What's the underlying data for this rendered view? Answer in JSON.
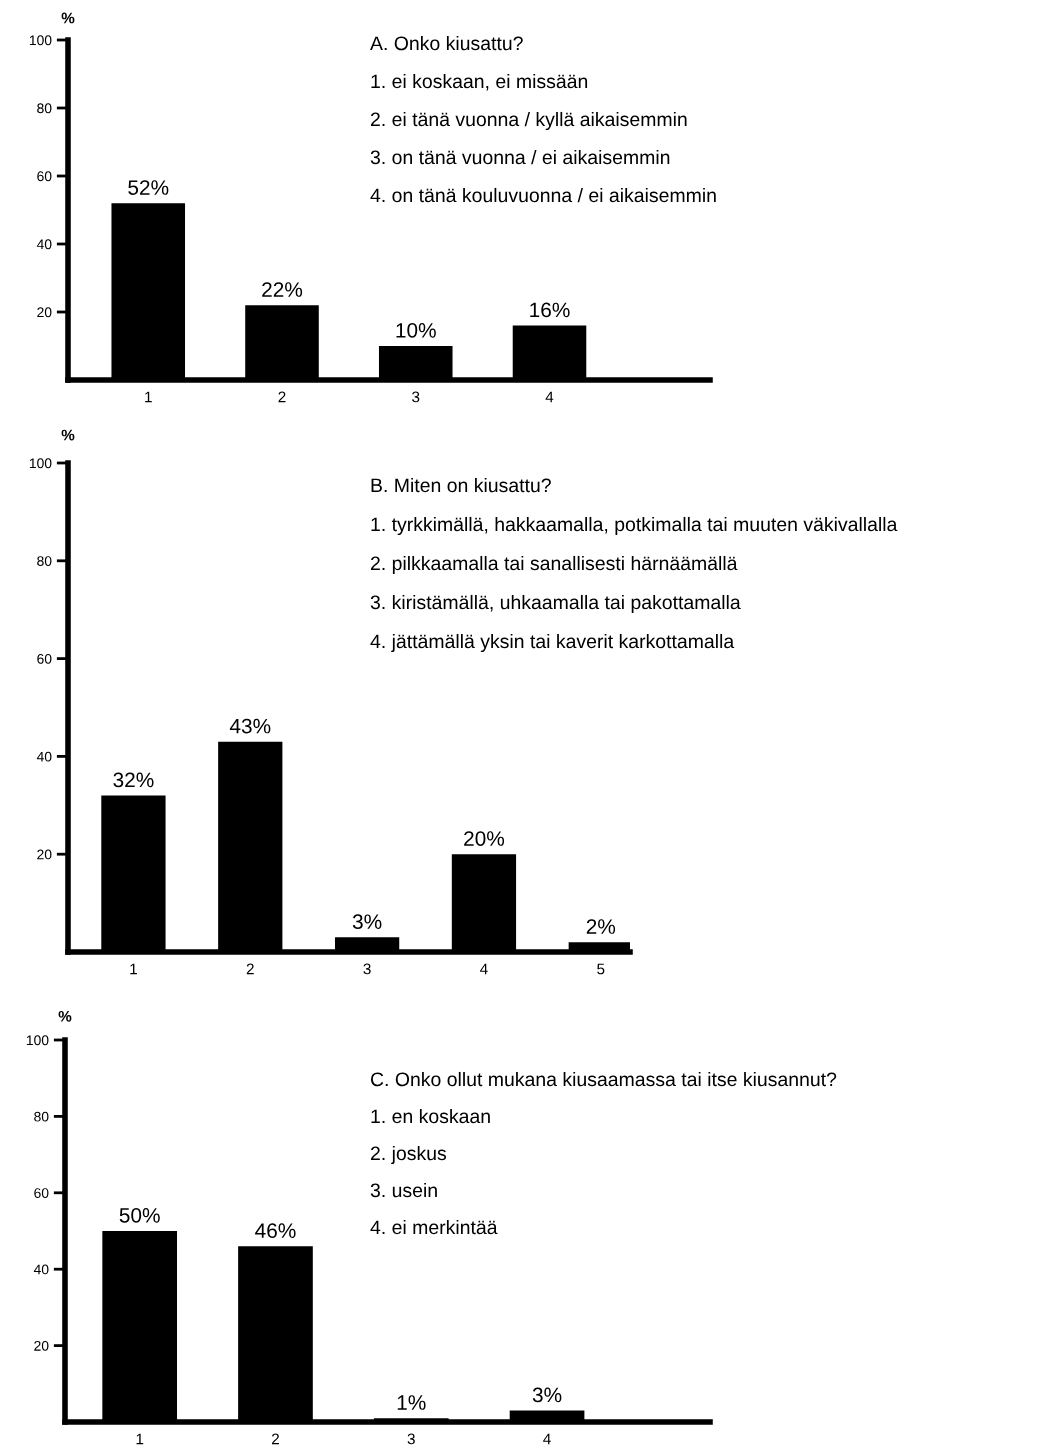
{
  "chart_data": [
    {
      "type": "bar",
      "title": "A. Onko kiusattu?",
      "ylabel": "%",
      "categories": [
        "1",
        "2",
        "3",
        "4"
      ],
      "values": [
        52,
        22,
        10,
        16
      ],
      "value_labels": [
        "52%",
        "22%",
        "10%",
        "16%"
      ],
      "color": "#000000",
      "ylim": [
        0,
        100
      ],
      "yticks": [
        20,
        40,
        60,
        80,
        100
      ],
      "grid": false,
      "legend": false,
      "annotations": [
        "1. ei koskaan, ei missään",
        "2. ei tänä vuonna / kyllä aikaisemmin",
        "3. on tänä vuonna / ei aikaisemmin",
        "4. on tänä kouluvuonna / ei aikaisemmin"
      ]
    },
    {
      "type": "bar",
      "title": "B. Miten on kiusattu?",
      "ylabel": "%",
      "categories": [
        "1",
        "2",
        "3",
        "4",
        "5"
      ],
      "values": [
        32,
        43,
        3,
        20,
        2
      ],
      "value_labels": [
        "32%",
        "43%",
        "3%",
        "20%",
        "2%"
      ],
      "color": "#000000",
      "ylim": [
        0,
        100
      ],
      "yticks": [
        20,
        40,
        60,
        80,
        100
      ],
      "grid": false,
      "legend": false,
      "annotations": [
        "1. tyrkkimällä, hakkaamalla, potkimalla tai muuten väkivallalla",
        "2. pilkkaamalla tai sanallisesti härnäämällä",
        "3. kiristämällä, uhkaamalla tai pakottamalla",
        "4. jättämällä yksin tai kaverit karkottamalla"
      ]
    },
    {
      "type": "bar",
      "title": "C. Onko ollut mukana kiusaamassa tai itse kiusannut?",
      "ylabel": "%",
      "categories": [
        "1",
        "2",
        "3",
        "4"
      ],
      "values": [
        50,
        46,
        1,
        3
      ],
      "value_labels": [
        "50%",
        "46%",
        "1%",
        "3%"
      ],
      "color": "#000000",
      "ylim": [
        0,
        100
      ],
      "yticks": [
        20,
        40,
        60,
        80,
        100
      ],
      "grid": false,
      "legend": false,
      "annotations": [
        "1. en koskaan",
        "2. joskus",
        "3. usein",
        "4. ei merkintää"
      ]
    }
  ]
}
